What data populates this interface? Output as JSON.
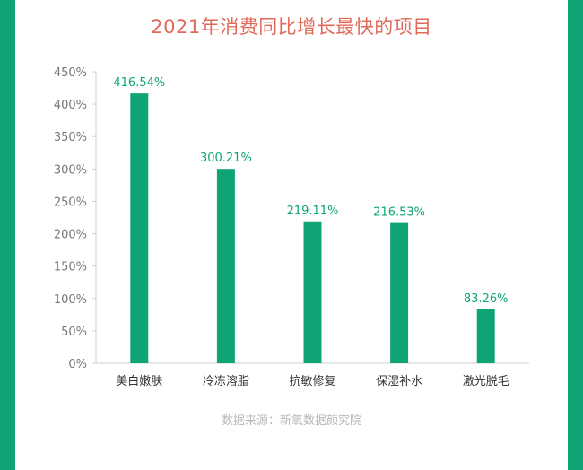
{
  "colors": {
    "bar": "#0ea476",
    "accent_green": "#0ea476",
    "title": "#e06a5a",
    "frame": "#0ea476",
    "source_text": "#b8b8b8"
  },
  "title": "2021年消费同比增长最快的项目",
  "source": "数据来源：新氧数据颜究院",
  "chart_data": {
    "type": "bar",
    "title": "2021年消费同比增长最快的项目",
    "categories": [
      "美白嫩肤",
      "冷冻溶脂",
      "抗敏修复",
      "保湿补水",
      "激光脱毛"
    ],
    "values": [
      416.54,
      300.21,
      219.11,
      216.53,
      83.26
    ],
    "value_labels": [
      "416.54%",
      "300.21%",
      "219.11%",
      "216.53%",
      "83.26%"
    ],
    "ylim": [
      0,
      450
    ],
    "y_ticks": [
      0,
      50,
      100,
      150,
      200,
      250,
      300,
      350,
      400,
      450
    ],
    "y_tick_labels": [
      "0%",
      "50%",
      "100%",
      "150%",
      "200%",
      "250%",
      "300%",
      "350%",
      "400%",
      "450%"
    ],
    "xlabel": "",
    "ylabel": "",
    "grid": false,
    "legend": false
  }
}
